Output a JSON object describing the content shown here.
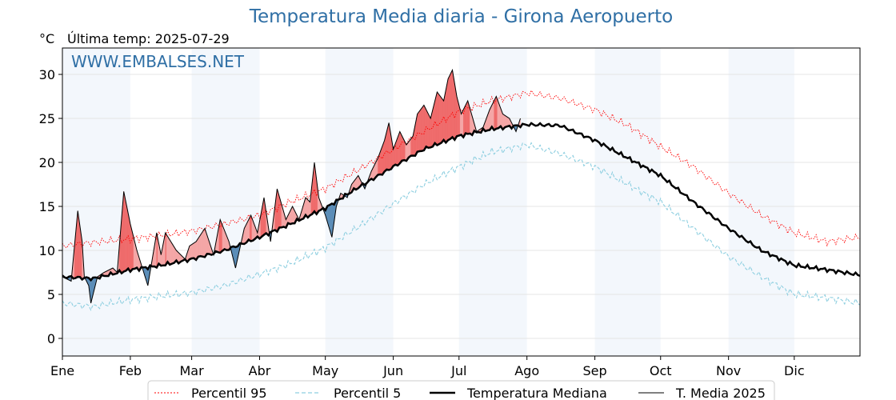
{
  "header": {
    "title": "Temperatura Media diaria - Girona Aeropuerto",
    "unit": "°C",
    "last_temp": "Última temp: 2025-07-29",
    "watermark": "WWW.EMBALSES.NET"
  },
  "colors": {
    "title": "#2f6fa5",
    "p95": "#ff0000",
    "p5": "#8ecfe0",
    "median": "#000000",
    "current": "#000000",
    "above_fill": "#f4a6a6",
    "above_fill_strong": "#ef6b6b",
    "below_fill": "#5b8db8",
    "month_band": "#f3f7fc"
  },
  "legend": {
    "p95": "Percentil 95",
    "p5": "Percentil 5",
    "median": "Temperatura Mediana",
    "current": "T. Media 2025"
  },
  "chart_data": {
    "type": "line",
    "title": "Temperatura Media diaria - Girona Aeropuerto",
    "xlabel": "",
    "ylabel": "°C",
    "x_unit": "day of year",
    "xlim": [
      1,
      365
    ],
    "ylim": [
      -2,
      33
    ],
    "grid": true,
    "legend_position": "bottom",
    "month_ticks": [
      "Ene",
      "Feb",
      "Mar",
      "Abr",
      "May",
      "Jun",
      "Jul",
      "Ago",
      "Sep",
      "Oct",
      "Nov",
      "Dic"
    ],
    "month_start_days": [
      1,
      32,
      60,
      91,
      121,
      152,
      182,
      213,
      244,
      274,
      305,
      335
    ],
    "y_ticks": [
      0,
      5,
      10,
      15,
      20,
      25,
      30
    ],
    "series": [
      {
        "name": "Percentil 95",
        "style": "dotted",
        "x": [
          1,
          15,
          32,
          46,
          60,
          75,
          91,
          105,
          121,
          135,
          152,
          166,
          182,
          197,
          213,
          228,
          244,
          259,
          274,
          289,
          305,
          320,
          335,
          350,
          365
        ],
        "y": [
          10.5,
          10.9,
          11.3,
          11.7,
          12.2,
          13.0,
          14.0,
          15.5,
          17.0,
          19.0,
          21.5,
          23.5,
          25.8,
          27.0,
          27.9,
          27.3,
          26.0,
          24.2,
          21.8,
          19.5,
          16.5,
          14.0,
          12.0,
          11.0,
          11.5
        ]
      },
      {
        "name": "Percentil 5",
        "style": "dashed",
        "x": [
          1,
          15,
          32,
          46,
          60,
          75,
          91,
          105,
          121,
          135,
          152,
          166,
          182,
          197,
          213,
          228,
          244,
          259,
          274,
          289,
          305,
          320,
          335,
          350,
          365
        ],
        "y": [
          4.0,
          3.6,
          4.4,
          4.8,
          5.2,
          6.0,
          7.3,
          8.5,
          10.3,
          12.5,
          15.3,
          17.5,
          19.5,
          21.2,
          22.0,
          21.0,
          19.5,
          17.5,
          15.5,
          12.5,
          9.3,
          7.0,
          5.0,
          4.6,
          4.0
        ]
      },
      {
        "name": "Temperatura Mediana",
        "style": "solid-thick",
        "x": [
          1,
          15,
          32,
          46,
          60,
          75,
          91,
          105,
          121,
          135,
          152,
          166,
          182,
          197,
          213,
          228,
          244,
          259,
          274,
          289,
          305,
          320,
          335,
          350,
          365
        ],
        "y": [
          7.0,
          6.8,
          7.8,
          8.3,
          9.0,
          10.0,
          11.5,
          13.0,
          14.8,
          17.0,
          19.5,
          21.5,
          23.0,
          23.8,
          24.3,
          24.2,
          22.5,
          20.5,
          18.5,
          15.5,
          12.5,
          10.0,
          8.3,
          7.8,
          7.2
        ]
      },
      {
        "name": "T. Media 2025",
        "style": "solid-thin",
        "x": [
          1,
          5,
          8,
          10,
          11,
          13,
          14,
          17,
          20,
          24,
          26,
          29,
          32,
          35,
          40,
          44,
          46,
          48,
          53,
          57,
          59,
          62,
          66,
          70,
          73,
          77,
          80,
          84,
          87,
          90,
          93,
          96,
          99,
          103,
          106,
          109,
          112,
          114,
          116,
          118,
          121,
          124,
          126,
          128,
          131,
          133,
          136,
          139,
          142,
          145,
          148,
          150,
          152,
          155,
          158,
          161,
          163,
          166,
          169,
          172,
          175,
          177,
          179,
          181,
          183,
          186,
          190,
          193,
          196,
          199,
          202,
          205,
          208,
          210
        ],
        "y": [
          7.0,
          6.5,
          14.5,
          11.0,
          7.0,
          6.0,
          4.0,
          7.0,
          7.5,
          8.0,
          7.5,
          16.7,
          13.0,
          10.0,
          6.0,
          12.0,
          9.5,
          12.0,
          10.0,
          9.0,
          10.5,
          11.0,
          12.5,
          9.5,
          13.5,
          11.0,
          8.0,
          12.5,
          14.0,
          12.0,
          16.0,
          11.0,
          17.0,
          13.5,
          15.0,
          13.5,
          16.0,
          15.5,
          20.0,
          16.0,
          14.0,
          11.5,
          15.0,
          16.5,
          16.0,
          17.5,
          18.5,
          17.0,
          19.0,
          20.5,
          22.5,
          24.5,
          21.5,
          23.5,
          22.0,
          23.0,
          25.5,
          26.5,
          25.0,
          28.0,
          27.0,
          29.5,
          30.5,
          27.5,
          25.5,
          27.0,
          23.5,
          24.0,
          26.0,
          27.5,
          25.5,
          25.0,
          23.5,
          25.0
        ]
      }
    ]
  }
}
